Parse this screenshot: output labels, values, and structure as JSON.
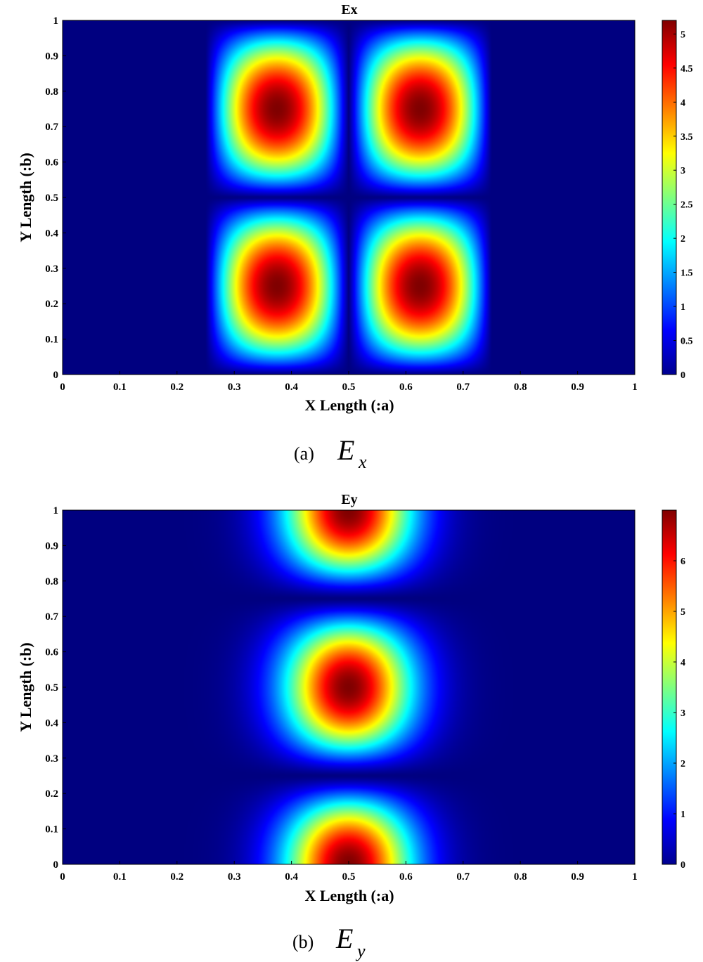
{
  "chart_data": [
    {
      "type": "heatmap",
      "title": "Ex",
      "xlabel": "X Length (:a)",
      "ylabel": "Y Length (:b)",
      "xlim": [
        0,
        1
      ],
      "ylim": [
        0,
        1
      ],
      "x_ticks": [
        "0",
        "0.1",
        "0.2",
        "0.3",
        "0.4",
        "0.5",
        "0.6",
        "0.7",
        "0.8",
        "0.9",
        "1"
      ],
      "y_ticks": [
        "0",
        "0.1",
        "0.2",
        "0.3",
        "0.4",
        "0.5",
        "0.6",
        "0.7",
        "0.8",
        "0.9",
        "1"
      ],
      "colormap": "jet",
      "clim": [
        0,
        5.2
      ],
      "colorbar_ticks": [
        "0",
        "0.5",
        "1",
        "1.5",
        "2",
        "2.5",
        "3",
        "3.5",
        "4",
        "4.5",
        "5"
      ],
      "colorbar_values": [
        0,
        0.5,
        1,
        1.5,
        2,
        2.5,
        3,
        3.5,
        4,
        4.5,
        5
      ],
      "peaks": [
        {
          "x": 0.4,
          "y": 0.25,
          "value": 5.2
        },
        {
          "x": 0.6,
          "y": 0.25,
          "value": 5.2
        },
        {
          "x": 0.4,
          "y": 0.75,
          "value": 5.2
        },
        {
          "x": 0.6,
          "y": 0.75,
          "value": 5.2
        }
      ],
      "field_form": "|sin(2πy)|·|sin(2π(x−0.5)/0.5)| confined to 0.25<x<0.75",
      "caption_label": "(a)",
      "caption_symbol": "E",
      "caption_subscript": "x"
    },
    {
      "type": "heatmap",
      "title": "Ey",
      "xlabel": "X Length (:a)",
      "ylabel": "Y Length (:b)",
      "xlim": [
        0,
        1
      ],
      "ylim": [
        0,
        1
      ],
      "x_ticks": [
        "0",
        "0.1",
        "0.2",
        "0.3",
        "0.4",
        "0.5",
        "0.6",
        "0.7",
        "0.8",
        "0.9",
        "1"
      ],
      "y_ticks": [
        "0",
        "0.1",
        "0.2",
        "0.3",
        "0.4",
        "0.5",
        "0.6",
        "0.7",
        "0.8",
        "0.9",
        "1"
      ],
      "colormap": "jet",
      "clim": [
        0,
        7
      ],
      "colorbar_ticks": [
        "0",
        "1",
        "2",
        "3",
        "4",
        "5",
        "6"
      ],
      "colorbar_values": [
        0,
        1,
        2,
        3,
        4,
        5,
        6
      ],
      "peaks": [
        {
          "x": 0.5,
          "y": 0.0,
          "value": 7
        },
        {
          "x": 0.5,
          "y": 0.5,
          "value": 7
        },
        {
          "x": 0.5,
          "y": 1.0,
          "value": 7
        }
      ],
      "caption_label": "(b)",
      "caption_symbol": "E",
      "caption_subscript": "y"
    }
  ]
}
